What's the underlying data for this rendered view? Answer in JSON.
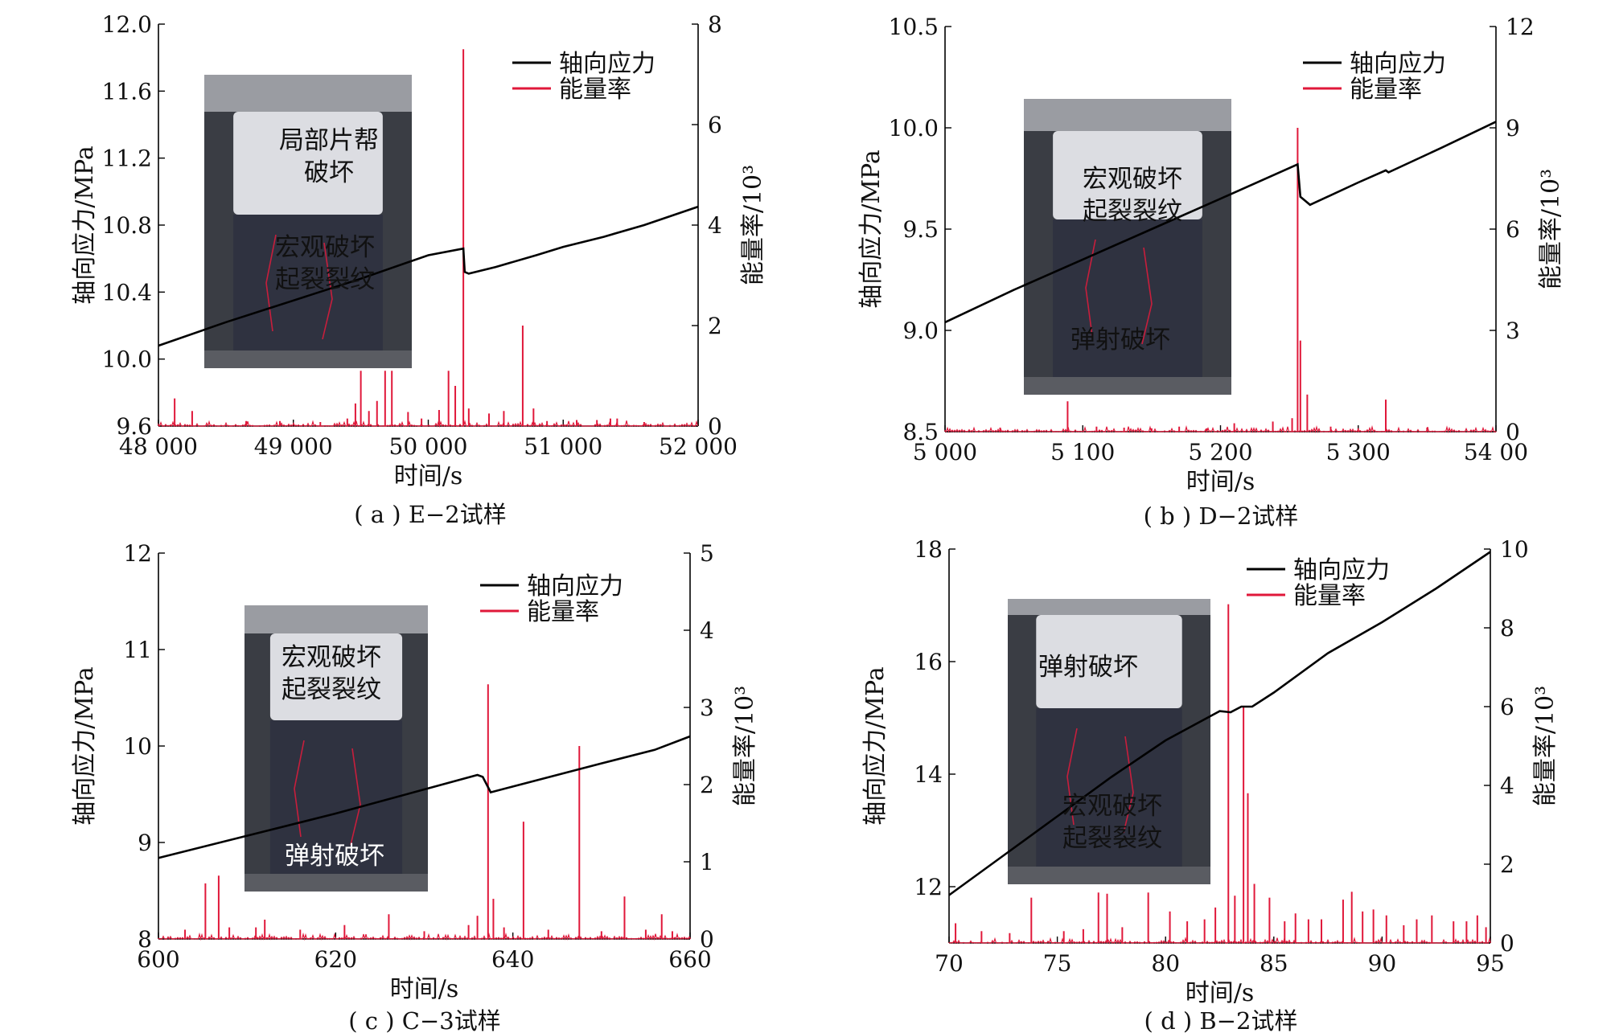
{
  "colors": {
    "stress": "#000000",
    "energy": "#e0183a",
    "annotation_line": "#c81e3c"
  },
  "legend": {
    "stress": "轴向应力",
    "energy": "能量率"
  },
  "chart_data": [
    {
      "id": "a",
      "type": "line",
      "caption": "( a ) E−2试样",
      "xlabel": "时间/s",
      "ylabel_left": "轴向应力/MPa",
      "ylabel_right": "能量率/10³",
      "xlim": [
        48000,
        52000
      ],
      "ylim_left": [
        9.6,
        12.0
      ],
      "ylim_right": [
        0,
        8
      ],
      "xticks": [
        48000,
        49000,
        50000,
        51000,
        52000
      ],
      "xtick_labels": [
        "48 000",
        "49 000",
        "50 000",
        "51 000",
        "52 000"
      ],
      "yticks_left": [
        9.6,
        10.0,
        10.4,
        10.8,
        11.2,
        11.6,
        12.0
      ],
      "ytick_labels_left": [
        "9.6",
        "10.0",
        "10.4",
        "10.8",
        "11.2",
        "11.6",
        "12.0"
      ],
      "yticks_right": [
        0,
        2,
        4,
        6,
        8
      ],
      "ytick_labels_right": [
        "0",
        "2",
        "4",
        "6",
        "8"
      ],
      "series": [
        {
          "name": "轴向应力",
          "axis": "left",
          "x": [
            48000,
            48500,
            49000,
            49500,
            50000,
            50260,
            50270,
            50300,
            50500,
            50800,
            51000,
            51300,
            51600,
            52000
          ],
          "y": [
            10.08,
            10.22,
            10.35,
            10.48,
            10.62,
            10.66,
            10.52,
            10.51,
            10.55,
            10.62,
            10.67,
            10.73,
            10.8,
            10.91
          ]
        },
        {
          "name": "能量率",
          "axis": "right",
          "peaks": [
            [
              48120,
              0.55
            ],
            [
              48250,
              0.3
            ],
            [
              48650,
              0.1
            ],
            [
              48900,
              0.1
            ],
            [
              49200,
              0.08
            ],
            [
              49400,
              0.15
            ],
            [
              49460,
              0.45
            ],
            [
              49500,
              1.1
            ],
            [
              49560,
              0.3
            ],
            [
              49620,
              0.5
            ],
            [
              49680,
              1.1
            ],
            [
              49730,
              1.1
            ],
            [
              49850,
              0.28
            ],
            [
              49950,
              0.15
            ],
            [
              50080,
              0.32
            ],
            [
              50150,
              1.1
            ],
            [
              50200,
              0.8
            ],
            [
              50260,
              7.5
            ],
            [
              50300,
              0.35
            ],
            [
              50450,
              0.25
            ],
            [
              50560,
              0.3
            ],
            [
              50700,
              2.0
            ],
            [
              50780,
              0.35
            ],
            [
              50880,
              0.1
            ],
            [
              51100,
              0.12
            ],
            [
              51250,
              0.12
            ],
            [
              51350,
              0.15
            ],
            [
              51400,
              0.15
            ],
            [
              51600,
              0.08
            ]
          ]
        }
      ],
      "photo_labels": [
        {
          "lines": [
            "局部片帮",
            "破坏"
          ],
          "color": "#111111"
        },
        {
          "lines": [
            "宏观破坏",
            "起裂裂纹"
          ],
          "color": "#111111"
        }
      ]
    },
    {
      "id": "b",
      "type": "line",
      "caption": "( b ) D−2试样",
      "xlabel": "时间/s",
      "ylabel_left": "轴向应力/MPa",
      "ylabel_right": "能量率/10³",
      "xlim": [
        5000,
        5400
      ],
      "ylim_left": [
        8.5,
        10.5
      ],
      "ylim_right": [
        0,
        12
      ],
      "xticks": [
        5000,
        5100,
        5200,
        5300,
        5400
      ],
      "xtick_labels": [
        "5 000",
        "5 100",
        "5 200",
        "5 300",
        "54 00"
      ],
      "yticks_left": [
        8.5,
        9.0,
        9.5,
        10.0,
        10.5
      ],
      "ytick_labels_left": [
        "8.5",
        "9.0",
        "9.5",
        "10.0",
        "10.5"
      ],
      "yticks_right": [
        0,
        3,
        6,
        9,
        12
      ],
      "ytick_labels_right": [
        "0",
        "3",
        "6",
        "9",
        "12"
      ],
      "series": [
        {
          "name": "轴向应力",
          "axis": "left",
          "x": [
            5000,
            5050,
            5100,
            5150,
            5200,
            5256,
            5258,
            5265,
            5300,
            5320,
            5322,
            5360,
            5400
          ],
          "y": [
            9.04,
            9.2,
            9.35,
            9.5,
            9.65,
            9.82,
            9.66,
            9.62,
            9.73,
            9.79,
            9.78,
            9.9,
            10.03
          ]
        },
        {
          "name": "能量率",
          "axis": "right",
          "peaks": [
            [
              5040,
              0.12
            ],
            [
              5089,
              0.9
            ],
            [
              5110,
              0.15
            ],
            [
              5130,
              0.12
            ],
            [
              5150,
              0.1
            ],
            [
              5170,
              0.15
            ],
            [
              5190,
              0.1
            ],
            [
              5210,
              0.25
            ],
            [
              5238,
              0.3
            ],
            [
              5252,
              0.4
            ],
            [
              5256,
              9.0
            ],
            [
              5258,
              2.7
            ],
            [
              5263,
              1.1
            ],
            [
              5280,
              0.15
            ],
            [
              5300,
              0.1
            ],
            [
              5320,
              0.95
            ],
            [
              5350,
              0.12
            ]
          ]
        }
      ],
      "photo_labels": [
        {
          "lines": [
            "宏观破坏",
            "起裂裂纹"
          ],
          "color": "#111111"
        },
        {
          "lines": [
            "弹射破坏"
          ],
          "color": "#111111"
        }
      ]
    },
    {
      "id": "c",
      "type": "line",
      "caption": "( c ) C−3试样",
      "xlabel": "时间/s",
      "ylabel_left": "轴向应力/MPa",
      "ylabel_right": "能量率/10³",
      "xlim": [
        600,
        660
      ],
      "ylim_left": [
        8,
        12
      ],
      "ylim_right": [
        0,
        5
      ],
      "xticks": [
        600,
        620,
        640,
        660
      ],
      "xtick_labels": [
        "600",
        "620",
        "640",
        "660"
      ],
      "yticks_left": [
        8,
        9,
        10,
        11,
        12
      ],
      "ytick_labels_left": [
        "8",
        "9",
        "10",
        "11",
        "12"
      ],
      "yticks_right": [
        0,
        1,
        2,
        3,
        4,
        5
      ],
      "ytick_labels_right": [
        "0",
        "1",
        "2",
        "3",
        "4",
        "5"
      ],
      "series": [
        {
          "name": "轴向应力",
          "axis": "left",
          "x": [
            600,
            610,
            620,
            630,
            636,
            636.6,
            637.5,
            640,
            650,
            656,
            660
          ],
          "y": [
            8.84,
            9.07,
            9.3,
            9.55,
            9.7,
            9.68,
            9.52,
            9.58,
            9.82,
            9.96,
            10.1
          ]
        },
        {
          "name": "能量率",
          "axis": "right",
          "peaks": [
            [
              603,
              0.12
            ],
            [
              605.3,
              0.72
            ],
            [
              606.8,
              0.82
            ],
            [
              608,
              0.15
            ],
            [
              611,
              0.15
            ],
            [
              612,
              0.25
            ],
            [
              616,
              0.12
            ],
            [
              621,
              0.18
            ],
            [
              626,
              0.32
            ],
            [
              630,
              0.1
            ],
            [
              635,
              0.18
            ],
            [
              636,
              0.3
            ],
            [
              637.2,
              3.3
            ],
            [
              637.8,
              0.52
            ],
            [
              639,
              0.15
            ],
            [
              641.2,
              1.52
            ],
            [
              644,
              0.12
            ],
            [
              647.5,
              2.5
            ],
            [
              650,
              0.1
            ],
            [
              652.6,
              0.55
            ],
            [
              655,
              0.12
            ],
            [
              656.8,
              0.32
            ],
            [
              658,
              0.1
            ]
          ]
        }
      ],
      "photo_labels": [
        {
          "lines": [
            "宏观破坏",
            "起裂裂纹"
          ],
          "color": "#111111"
        },
        {
          "lines": [
            "弹射破坏"
          ],
          "color": "#ffffff"
        }
      ]
    },
    {
      "id": "d",
      "type": "line",
      "caption": "( d ) B−2试样",
      "xlabel": "时间/s",
      "ylabel_left": "轴向应力/MPa",
      "ylabel_right": "能量率/10³",
      "xlim": [
        70,
        95
      ],
      "ylim_left": [
        11,
        18
      ],
      "ylim_right": [
        0,
        10
      ],
      "xticks": [
        70,
        75,
        80,
        85,
        90,
        95
      ],
      "xtick_labels": [
        "70",
        "75",
        "80",
        "85",
        "90",
        "95"
      ],
      "yticks_left": [
        12,
        14,
        16,
        18
      ],
      "ytick_labels_left": [
        "12",
        "14",
        "16",
        "18"
      ],
      "yticks_right": [
        0,
        2,
        4,
        6,
        8,
        10
      ],
      "ytick_labels_right": [
        "0",
        "2",
        "4",
        "6",
        "8",
        "10"
      ],
      "series": [
        {
          "name": "轴向应力",
          "axis": "left",
          "x": [
            70,
            72.5,
            75,
            77.5,
            80,
            82.5,
            83,
            83.5,
            84,
            85,
            87.5,
            90,
            92.5,
            95
          ],
          "y": [
            11.85,
            12.55,
            13.25,
            13.95,
            14.6,
            15.12,
            15.1,
            15.2,
            15.2,
            15.45,
            16.15,
            16.7,
            17.3,
            17.95
          ]
        },
        {
          "name": "能量率",
          "axis": "right",
          "peaks": [
            [
              70.3,
              0.5
            ],
            [
              71.5,
              0.3
            ],
            [
              72.8,
              0.25
            ],
            [
              73.8,
              1.15
            ],
            [
              75.3,
              0.3
            ],
            [
              76.2,
              0.35
            ],
            [
              76.9,
              1.28
            ],
            [
              77.3,
              1.25
            ],
            [
              78,
              0.4
            ],
            [
              79.2,
              1.28
            ],
            [
              80.2,
              0.8
            ],
            [
              81,
              0.55
            ],
            [
              81.8,
              0.6
            ],
            [
              82.3,
              0.9
            ],
            [
              82.9,
              8.6
            ],
            [
              83.2,
              1.2
            ],
            [
              83.6,
              6.0
            ],
            [
              83.8,
              3.8
            ],
            [
              84.1,
              1.5
            ],
            [
              84.8,
              1.15
            ],
            [
              85.5,
              0.55
            ],
            [
              86,
              0.75
            ],
            [
              86.6,
              0.6
            ],
            [
              87.2,
              0.6
            ],
            [
              88.2,
              1.1
            ],
            [
              88.6,
              1.3
            ],
            [
              89.1,
              0.8
            ],
            [
              89.6,
              0.85
            ],
            [
              90.2,
              0.7
            ],
            [
              91,
              0.45
            ],
            [
              91.6,
              0.6
            ],
            [
              92.3,
              0.7
            ],
            [
              93.3,
              0.55
            ],
            [
              93.9,
              0.55
            ],
            [
              94.4,
              0.7
            ],
            [
              94.8,
              0.4
            ]
          ]
        }
      ],
      "photo_labels": [
        {
          "lines": [
            "弹射破坏"
          ],
          "color": "#111111"
        },
        {
          "lines": [
            "宏观破坏",
            "起裂裂纹"
          ],
          "color": "#111111"
        }
      ]
    }
  ]
}
